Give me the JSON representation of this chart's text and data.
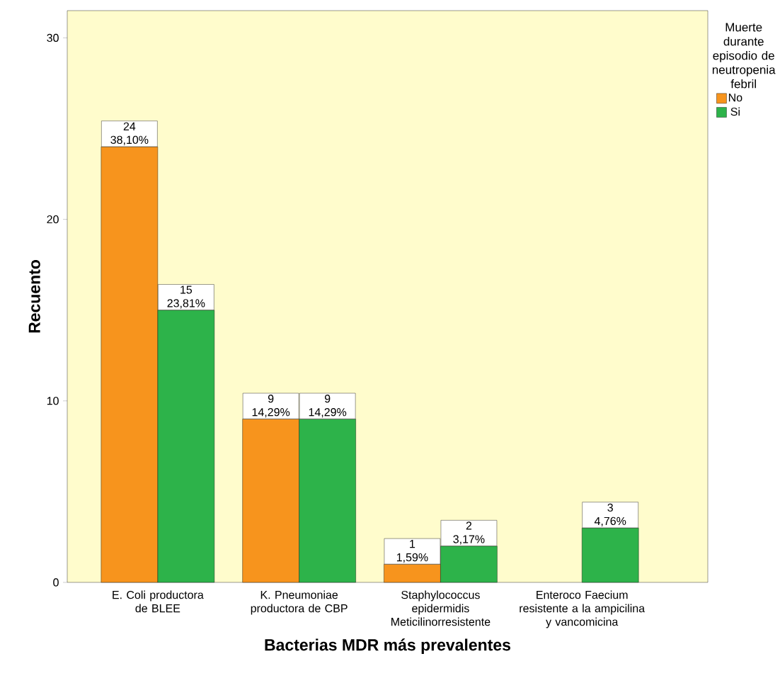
{
  "chart_data": {
    "type": "bar",
    "xlabel": "Bacterias MDR más prevalentes",
    "ylabel": "Recuento",
    "legend_title": "Muerte durante episodio de neutropenia febril",
    "categories": [
      "E. Coli productora de BLEE",
      "K. Pneumoniae productora de CBP",
      "Staphylococcus epidermidis Meticilinorresistente",
      "Enteroco Faecium resistente a la ampicilina y vancomicina"
    ],
    "series": [
      {
        "name": "No",
        "color": "#f7941d",
        "values": [
          24,
          9,
          1,
          null
        ],
        "value_labels": [
          "24 38,10%",
          "9 14,29%",
          "1 1,59%",
          null
        ]
      },
      {
        "name": "Si",
        "color": "#2db34a",
        "values": [
          15,
          9,
          2,
          3
        ],
        "value_labels": [
          "15 23,81%",
          "9 14,29%",
          "2 3,17%",
          "3 4,76%"
        ]
      }
    ],
    "ylim": [
      0,
      31.5
    ],
    "yticks": [
      0,
      10,
      20,
      30
    ],
    "grid": false,
    "legend": "top right"
  }
}
